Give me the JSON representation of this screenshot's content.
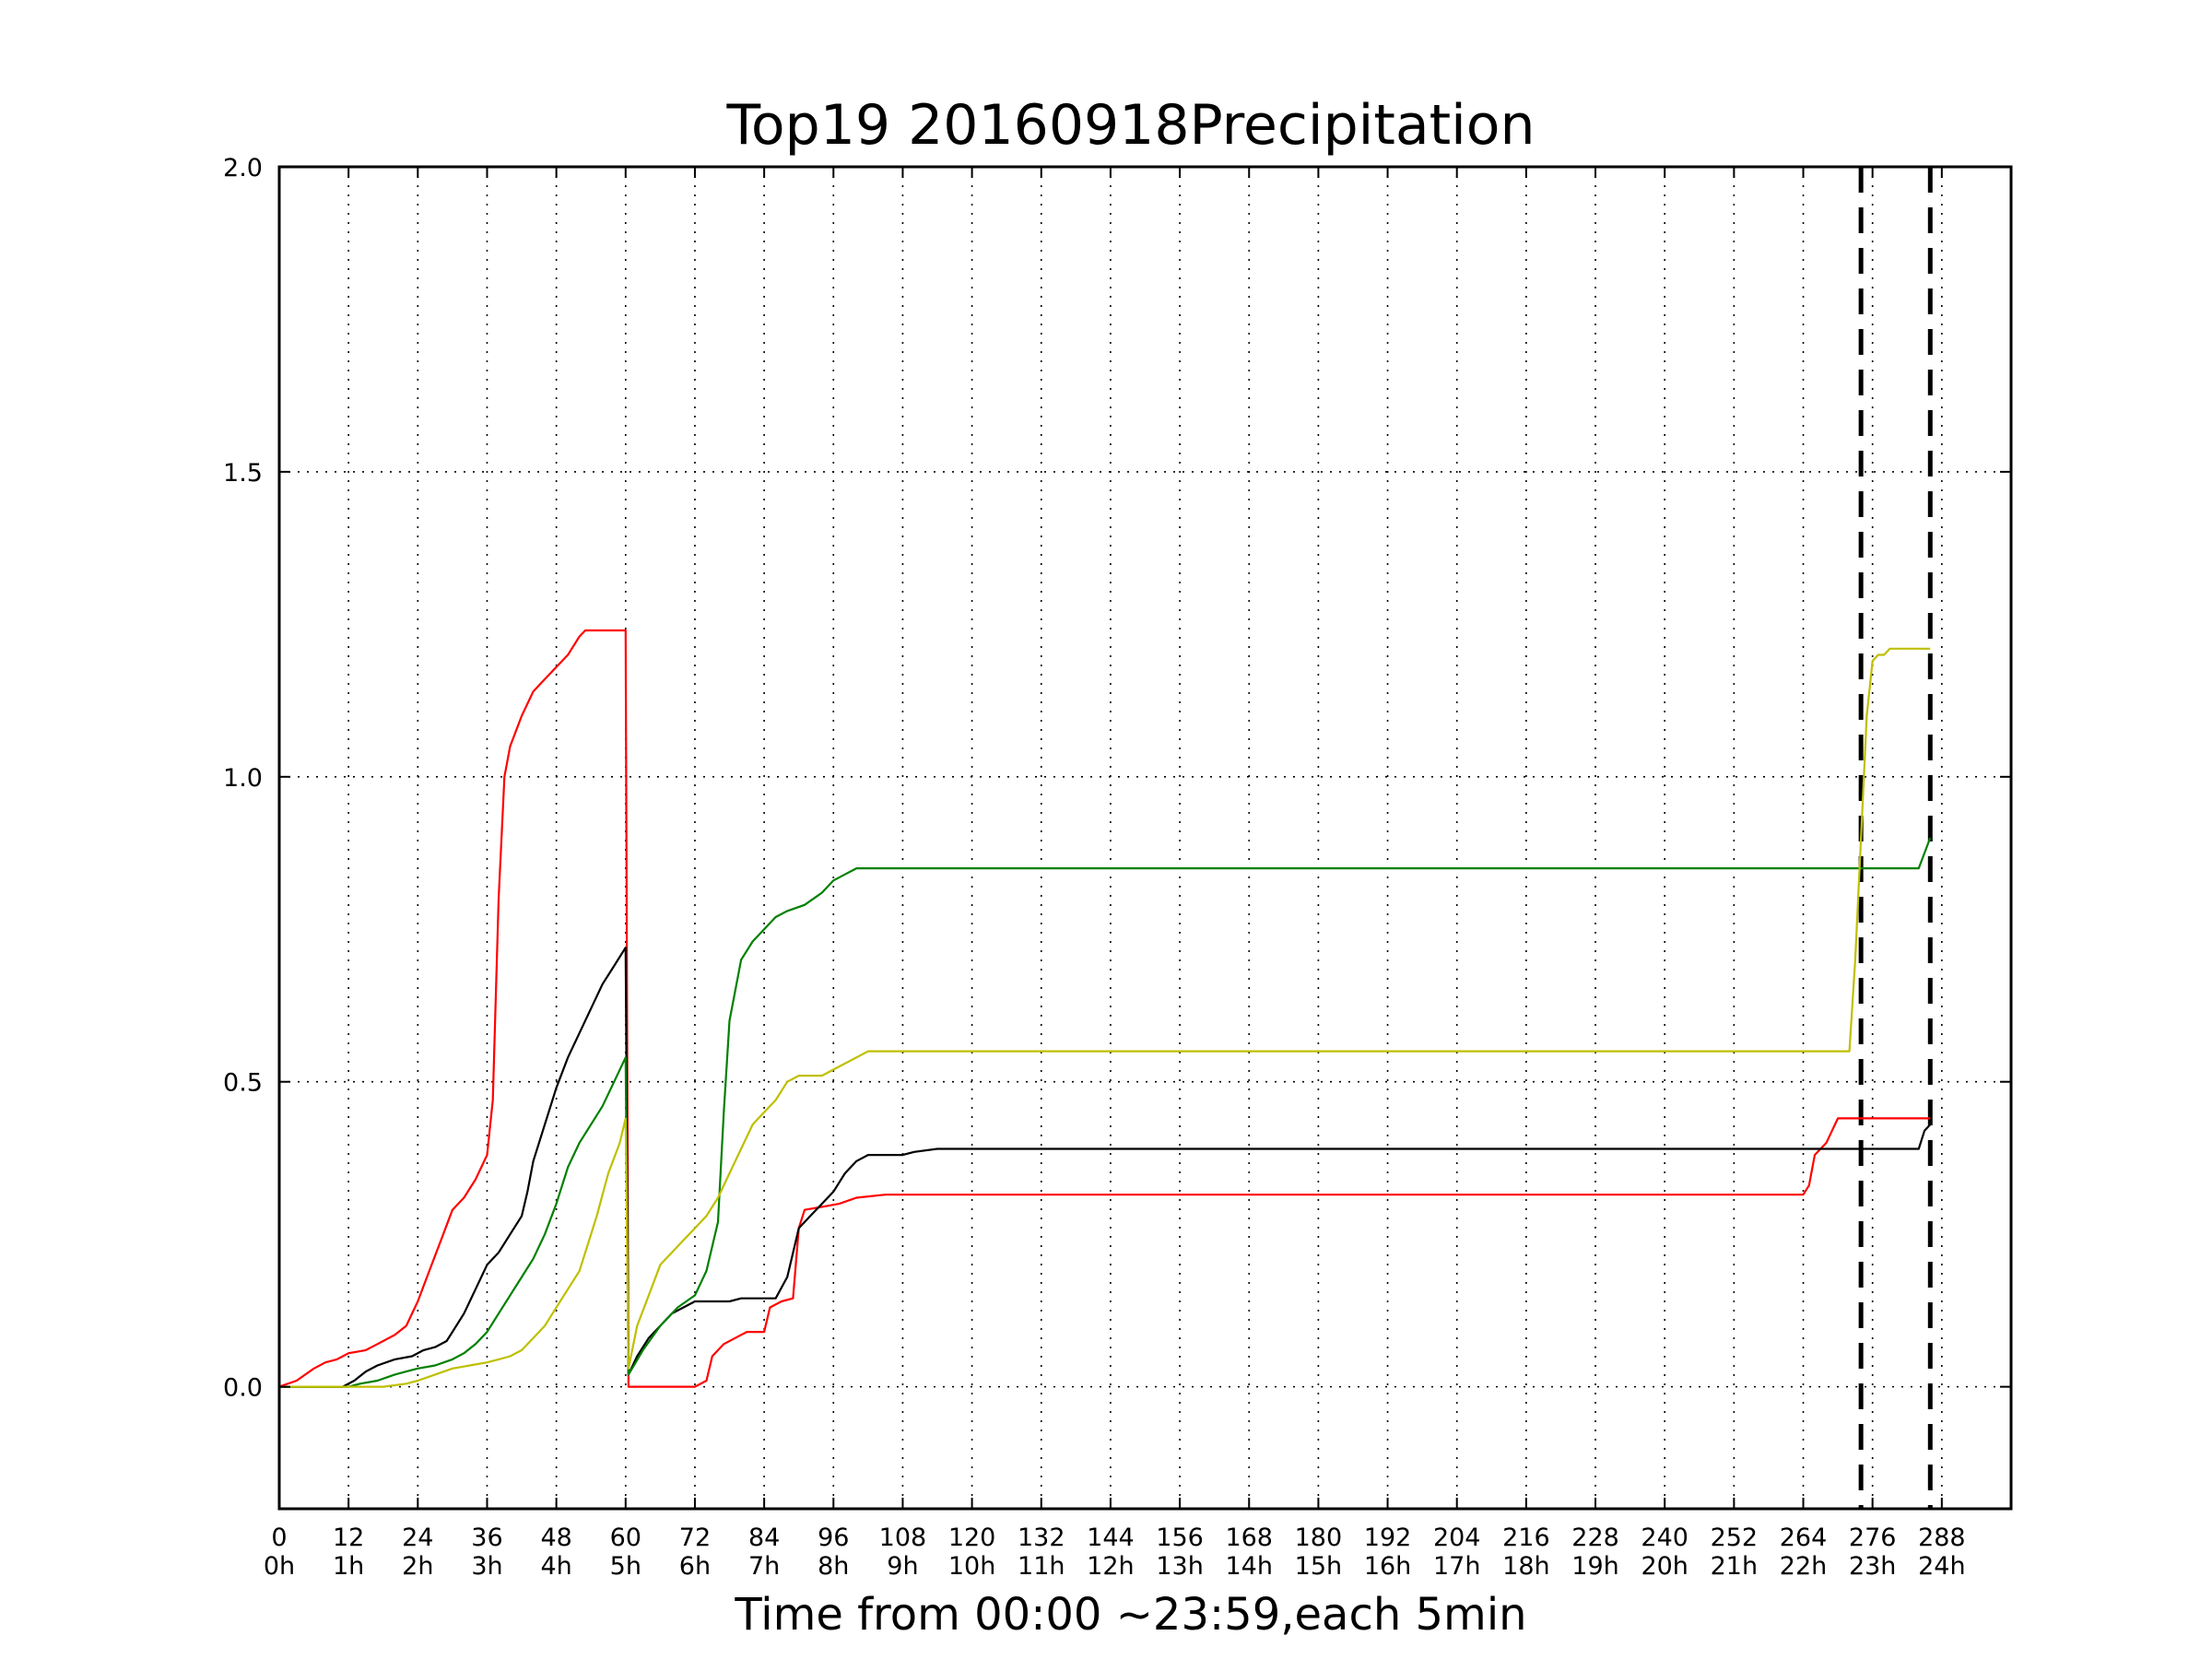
{
  "chart_data": {
    "type": "line",
    "title": "Top19 20160918Precipitation",
    "xlabel": "Time from 00:00 ~23:59,each 5min",
    "ylabel": "",
    "xlim": [
      0,
      300
    ],
    "ylim": [
      -0.2,
      2.0
    ],
    "grid": true,
    "x_ticks": [
      0,
      12,
      24,
      36,
      48,
      60,
      72,
      84,
      96,
      108,
      120,
      132,
      144,
      156,
      168,
      180,
      192,
      204,
      216,
      228,
      240,
      252,
      264,
      276,
      288
    ],
    "x_tick_labels": [
      "0",
      "12",
      "24",
      "36",
      "48",
      "60",
      "72",
      "84",
      "96",
      "108",
      "120",
      "132",
      "144",
      "156",
      "168",
      "180",
      "192",
      "204",
      "216",
      "228",
      "240",
      "252",
      "264",
      "276",
      "288"
    ],
    "x_tick_sublabels": [
      "0h",
      "1h",
      "2h",
      "3h",
      "4h",
      "5h",
      "6h",
      "7h",
      "8h",
      "9h",
      "10h",
      "11h",
      "12h",
      "13h",
      "14h",
      "15h",
      "16h",
      "17h",
      "18h",
      "19h",
      "20h",
      "21h",
      "22h",
      "23h",
      "24h"
    ],
    "y_ticks": [
      0.0,
      0.5,
      1.0,
      1.5,
      2.0
    ],
    "y_tick_labels": [
      "0.0",
      "0.5",
      "1.0",
      "1.5",
      "2.0"
    ],
    "vlines": [
      274,
      286
    ],
    "vline_color": "#000000",
    "series": [
      {
        "color": "#ff0000",
        "points": [
          [
            0,
            0
          ],
          [
            3,
            0.01
          ],
          [
            6,
            0.03
          ],
          [
            8,
            0.04
          ],
          [
            10,
            0.045
          ],
          [
            12,
            0.055
          ],
          [
            15,
            0.06
          ],
          [
            17,
            0.07
          ],
          [
            20,
            0.085
          ],
          [
            22,
            0.1
          ],
          [
            24,
            0.14
          ],
          [
            26,
            0.19
          ],
          [
            28,
            0.24
          ],
          [
            30,
            0.29
          ],
          [
            32,
            0.31
          ],
          [
            34,
            0.34
          ],
          [
            36,
            0.38
          ],
          [
            37,
            0.47
          ],
          [
            38,
            0.8
          ],
          [
            39,
            1.0
          ],
          [
            40,
            1.05
          ],
          [
            42,
            1.1
          ],
          [
            44,
            1.14
          ],
          [
            46,
            1.16
          ],
          [
            48,
            1.18
          ],
          [
            50,
            1.2
          ],
          [
            52,
            1.23
          ],
          [
            53,
            1.24
          ],
          [
            60,
            1.24
          ],
          [
            60.5,
            0.0
          ],
          [
            72,
            0.0
          ],
          [
            74,
            0.01
          ],
          [
            75,
            0.05
          ],
          [
            77,
            0.07
          ],
          [
            79,
            0.08
          ],
          [
            81,
            0.09
          ],
          [
            84,
            0.09
          ],
          [
            85,
            0.13
          ],
          [
            87,
            0.14
          ],
          [
            89,
            0.145
          ],
          [
            90,
            0.26
          ],
          [
            91,
            0.29
          ],
          [
            94,
            0.295
          ],
          [
            97,
            0.3
          ],
          [
            100,
            0.31
          ],
          [
            105,
            0.315
          ],
          [
            264,
            0.315
          ],
          [
            265,
            0.33
          ],
          [
            266,
            0.38
          ],
          [
            268,
            0.4
          ],
          [
            269,
            0.42
          ],
          [
            270,
            0.44
          ],
          [
            286,
            0.44
          ]
        ]
      },
      {
        "color": "#000000",
        "points": [
          [
            0,
            0
          ],
          [
            11,
            0
          ],
          [
            13,
            0.01
          ],
          [
            15,
            0.025
          ],
          [
            17,
            0.035
          ],
          [
            20,
            0.045
          ],
          [
            23,
            0.05
          ],
          [
            25,
            0.06
          ],
          [
            27,
            0.065
          ],
          [
            29,
            0.075
          ],
          [
            30,
            0.09
          ],
          [
            32,
            0.12
          ],
          [
            34,
            0.16
          ],
          [
            36,
            0.2
          ],
          [
            38,
            0.22
          ],
          [
            40,
            0.25
          ],
          [
            42,
            0.28
          ],
          [
            43,
            0.32
          ],
          [
            44,
            0.37
          ],
          [
            46,
            0.43
          ],
          [
            48,
            0.49
          ],
          [
            50,
            0.54
          ],
          [
            52,
            0.58
          ],
          [
            54,
            0.62
          ],
          [
            56,
            0.66
          ],
          [
            58,
            0.69
          ],
          [
            60,
            0.72
          ],
          [
            60.5,
            0.02
          ],
          [
            62,
            0.05
          ],
          [
            64,
            0.08
          ],
          [
            66,
            0.1
          ],
          [
            68,
            0.12
          ],
          [
            70,
            0.13
          ],
          [
            72,
            0.14
          ],
          [
            78,
            0.14
          ],
          [
            80,
            0.145
          ],
          [
            86,
            0.145
          ],
          [
            88,
            0.18
          ],
          [
            90,
            0.26
          ],
          [
            92,
            0.28
          ],
          [
            94,
            0.3
          ],
          [
            96,
            0.32
          ],
          [
            98,
            0.35
          ],
          [
            100,
            0.37
          ],
          [
            102,
            0.38
          ],
          [
            108,
            0.38
          ],
          [
            110,
            0.385
          ],
          [
            114,
            0.39
          ],
          [
            284,
            0.39
          ],
          [
            285,
            0.42
          ],
          [
            286,
            0.43
          ]
        ]
      },
      {
        "color": "#008000",
        "points": [
          [
            0,
            0
          ],
          [
            12,
            0
          ],
          [
            14,
            0.005
          ],
          [
            17,
            0.01
          ],
          [
            20,
            0.02
          ],
          [
            22,
            0.025
          ],
          [
            24,
            0.03
          ],
          [
            27,
            0.035
          ],
          [
            30,
            0.045
          ],
          [
            32,
            0.055
          ],
          [
            34,
            0.07
          ],
          [
            36,
            0.09
          ],
          [
            38,
            0.12
          ],
          [
            40,
            0.15
          ],
          [
            42,
            0.18
          ],
          [
            44,
            0.21
          ],
          [
            46,
            0.25
          ],
          [
            48,
            0.3
          ],
          [
            50,
            0.36
          ],
          [
            52,
            0.4
          ],
          [
            54,
            0.43
          ],
          [
            56,
            0.46
          ],
          [
            58,
            0.5
          ],
          [
            60,
            0.54
          ],
          [
            60.5,
            0.02
          ],
          [
            63,
            0.06
          ],
          [
            66,
            0.1
          ],
          [
            69,
            0.13
          ],
          [
            72,
            0.15
          ],
          [
            74,
            0.19
          ],
          [
            76,
            0.27
          ],
          [
            77,
            0.45
          ],
          [
            78,
            0.6
          ],
          [
            80,
            0.7
          ],
          [
            82,
            0.73
          ],
          [
            84,
            0.75
          ],
          [
            86,
            0.77
          ],
          [
            88,
            0.78
          ],
          [
            91,
            0.79
          ],
          [
            94,
            0.81
          ],
          [
            96,
            0.83
          ],
          [
            98,
            0.84
          ],
          [
            100,
            0.85
          ],
          [
            284,
            0.85
          ],
          [
            286,
            0.9
          ]
        ]
      },
      {
        "color": "#bfbf00",
        "points": [
          [
            0,
            0
          ],
          [
            18,
            0
          ],
          [
            22,
            0.005
          ],
          [
            24,
            0.01
          ],
          [
            27,
            0.02
          ],
          [
            30,
            0.03
          ],
          [
            33,
            0.035
          ],
          [
            36,
            0.04
          ],
          [
            38,
            0.045
          ],
          [
            40,
            0.05
          ],
          [
            42,
            0.06
          ],
          [
            44,
            0.08
          ],
          [
            46,
            0.1
          ],
          [
            48,
            0.13
          ],
          [
            50,
            0.16
          ],
          [
            52,
            0.19
          ],
          [
            53,
            0.22
          ],
          [
            55,
            0.28
          ],
          [
            57,
            0.35
          ],
          [
            59,
            0.4
          ],
          [
            60,
            0.44
          ],
          [
            60.5,
            0.03
          ],
          [
            62,
            0.1
          ],
          [
            64,
            0.15
          ],
          [
            66,
            0.2
          ],
          [
            68,
            0.22
          ],
          [
            70,
            0.24
          ],
          [
            72,
            0.26
          ],
          [
            74,
            0.28
          ],
          [
            76,
            0.31
          ],
          [
            78,
            0.35
          ],
          [
            80,
            0.39
          ],
          [
            82,
            0.43
          ],
          [
            84,
            0.45
          ],
          [
            86,
            0.47
          ],
          [
            88,
            0.5
          ],
          [
            90,
            0.51
          ],
          [
            94,
            0.51
          ],
          [
            96,
            0.52
          ],
          [
            98,
            0.53
          ],
          [
            100,
            0.54
          ],
          [
            102,
            0.55
          ],
          [
            272,
            0.55
          ],
          [
            273,
            0.7
          ],
          [
            274,
            0.9
          ],
          [
            275,
            1.1
          ],
          [
            276,
            1.19
          ],
          [
            277,
            1.2
          ],
          [
            278,
            1.2
          ],
          [
            279,
            1.21
          ],
          [
            286,
            1.21
          ]
        ]
      }
    ]
  }
}
